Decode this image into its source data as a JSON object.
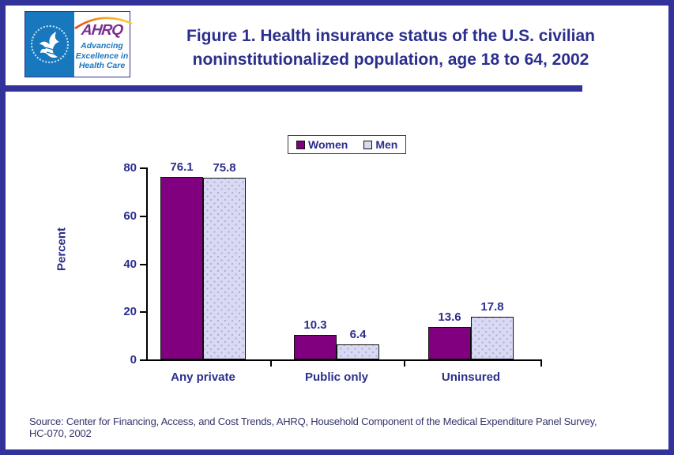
{
  "header": {
    "logo": {
      "seal_name": "hhs-department-seal",
      "ahrq_acronym": "AHRQ",
      "tagline_lines": [
        "Advancing",
        "Excellence in",
        "Health Care"
      ]
    },
    "title_lines": [
      "Figure 1. Health insurance status of the U.S. civilian",
      "noninstitutionalized population, age 18 to 64, 2002"
    ]
  },
  "chart_data": {
    "type": "bar",
    "title": "Figure 1. Health insurance status of the U.S. civilian noninstitutionalized population, age 18 to 64, 2002",
    "categories": [
      "Any private",
      "Public only",
      "Uninsured"
    ],
    "series": [
      {
        "name": "Women",
        "values": [
          76.1,
          10.3,
          13.6
        ],
        "color": "#800080"
      },
      {
        "name": "Men",
        "values": [
          75.8,
          6.4,
          17.8
        ],
        "color": "#D9D9F2"
      }
    ],
    "xlabel": "",
    "ylabel": "Percent",
    "ylim": [
      0,
      80
    ],
    "yticks": [
      0,
      20,
      40,
      60,
      80
    ],
    "value_labels_shown": true,
    "grid": false,
    "legend_position": "top-center"
  },
  "colors": {
    "frame_border": "#32329B",
    "title_text": "#2B2E8C",
    "women_bar": "#800080",
    "men_bar": "#D9D9F2",
    "hhs_blue": "#1878BE",
    "ahrq_purple": "#7B2E8E",
    "tagline_blue": "#1B75BC"
  },
  "footer": {
    "source_lines": [
      "Source: Center for Financing, Access, and Cost Trends, AHRQ, Household Component of the Medical Expenditure Panel Survey,",
      "HC-070, 2002"
    ]
  }
}
